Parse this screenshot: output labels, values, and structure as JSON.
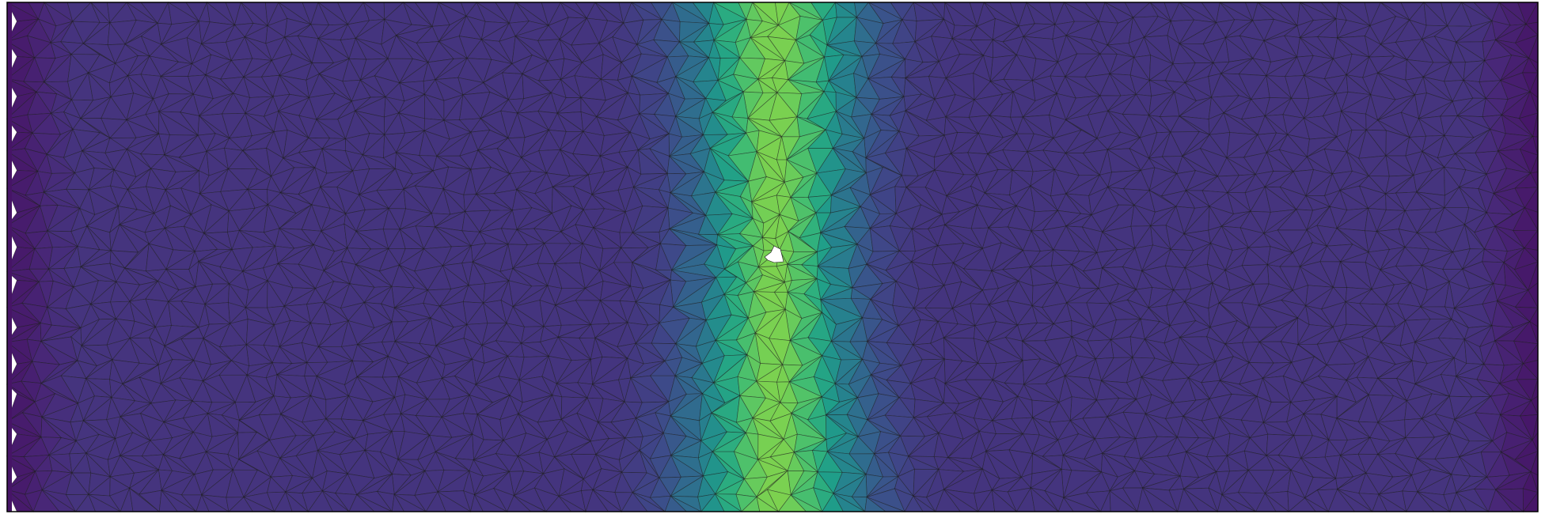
{
  "figure": {
    "kind": "triangulated mesh with scalar field",
    "colormap": "viridis",
    "background": "#ffffff",
    "frame_color": "#000000",
    "edge_color": "#1a1a1a",
    "hole_color": "#ffffff",
    "colormap_stops": [
      "#440154",
      "#482878",
      "#3e4989",
      "#31688e",
      "#26828e",
      "#1f9e89",
      "#35b779",
      "#6ece58",
      "#b5de2b",
      "#fde725"
    ],
    "field_profile": {
      "peak_value": 0.8,
      "edge_value": 0.0,
      "plateau_value": 0.15
    }
  }
}
